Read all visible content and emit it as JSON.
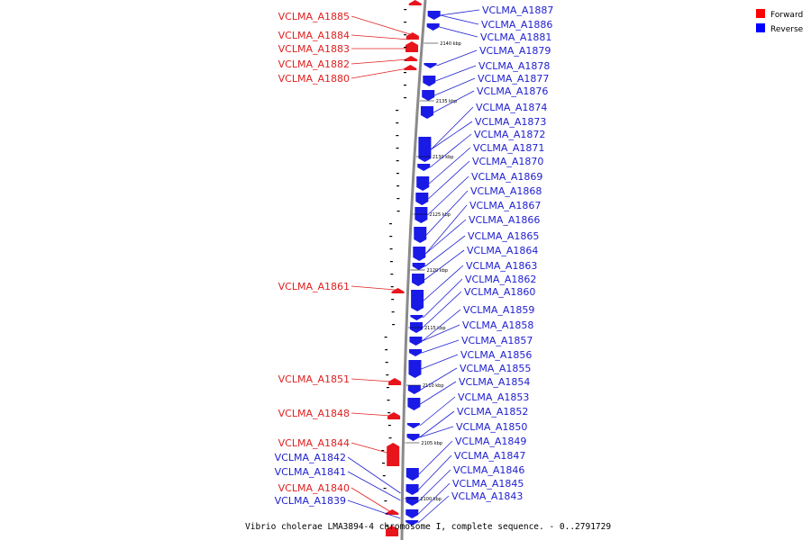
{
  "caption": "Vibrio cholerae LMA3894-4 chromosome I, complete sequence. - 0..2791729",
  "legend": [
    {
      "label": "Forward",
      "color": "#ff0000"
    },
    {
      "label": "Reverse",
      "color": "#0000ff"
    }
  ],
  "colors": {
    "forward": "#e8141c",
    "reverse": "#1a1ae6",
    "forward_label": "#e02020",
    "reverse_label": "#2020d0",
    "backbone": "#9a9a9a"
  },
  "scale_ticks": [
    "2140 kbp",
    "2135 kbp",
    "2130 kbp",
    "2125 kbp",
    "2120 kbp",
    "2115 kbp",
    "2110 kbp",
    "2105 kbp",
    "2100 kbp"
  ],
  "forward_labels": [
    "VCLMA_A1885",
    "VCLMA_A1884",
    "VCLMA_A1883",
    "VCLMA_A1882",
    "VCLMA_A1880",
    "VCLMA_A1861",
    "VCLMA_A1851",
    "VCLMA_A1848",
    "VCLMA_A1844",
    "VCLMA_A1840"
  ],
  "reverse_labels_left": [
    "VCLMA_A1842",
    "VCLMA_A1841",
    "VCLMA_A1839"
  ],
  "reverse_labels_right": [
    "VCLMA_A1887",
    "VCLMA_A1886",
    "VCLMA_A1881",
    "VCLMA_A1879",
    "VCLMA_A1878",
    "VCLMA_A1877",
    "VCLMA_A1876",
    "VCLMA_A1874",
    "VCLMA_A1873",
    "VCLMA_A1872",
    "VCLMA_A1871",
    "VCLMA_A1870",
    "VCLMA_A1869",
    "VCLMA_A1868",
    "VCLMA_A1867",
    "VCLMA_A1866",
    "VCLMA_A1865",
    "VCLMA_A1864",
    "VCLMA_A1863",
    "VCLMA_A1862",
    "VCLMA_A1860",
    "VCLMA_A1859",
    "VCLMA_A1858",
    "VCLMA_A1857",
    "VCLMA_A1856",
    "VCLMA_A1855",
    "VCLMA_A1854",
    "VCLMA_A1853",
    "VCLMA_A1852",
    "VCLMA_A1850",
    "VCLMA_A1849",
    "VCLMA_A1847",
    "VCLMA_A1846",
    "VCLMA_A1845",
    "VCLMA_A1843"
  ]
}
